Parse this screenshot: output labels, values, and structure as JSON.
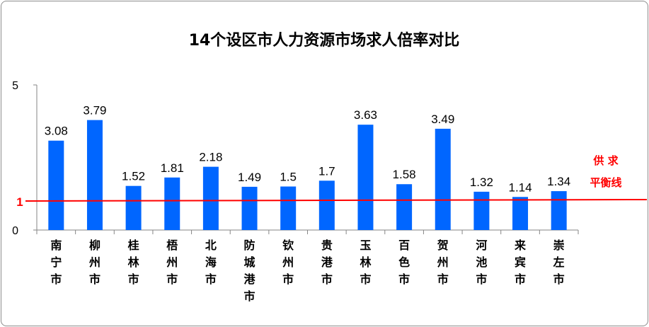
{
  "chart_data": {
    "type": "bar",
    "title": "14个设区市人力资源市场求人倍率对比",
    "categories": [
      "南宁市",
      "柳州市",
      "桂林市",
      "梧州市",
      "北海市",
      "防城港市",
      "钦州市",
      "贵港市",
      "玉林市",
      "百色市",
      "贺州市",
      "河池市",
      "来宾市",
      "崇左市"
    ],
    "values": [
      3.08,
      3.79,
      1.52,
      1.81,
      2.18,
      1.49,
      1.5,
      1.7,
      3.63,
      1.58,
      3.49,
      1.32,
      1.14,
      1.34
    ],
    "value_labels": [
      "3.08",
      "3.79",
      "1.52",
      "1.81",
      "2.18",
      "1.49",
      "1.5",
      "1.7",
      "3.63",
      "1.58",
      "3.49",
      "1.32",
      "1.14",
      "1.34"
    ],
    "ylim": [
      0,
      5
    ],
    "y_ticks": [
      "0",
      "5"
    ],
    "bar_color": "#0066ff",
    "reference_line": {
      "value": 1,
      "value_label": "1",
      "label_line1": "供 求",
      "label_line2": "平衡线",
      "color": "#ff0000"
    },
    "grid": false,
    "legend": "none"
  }
}
